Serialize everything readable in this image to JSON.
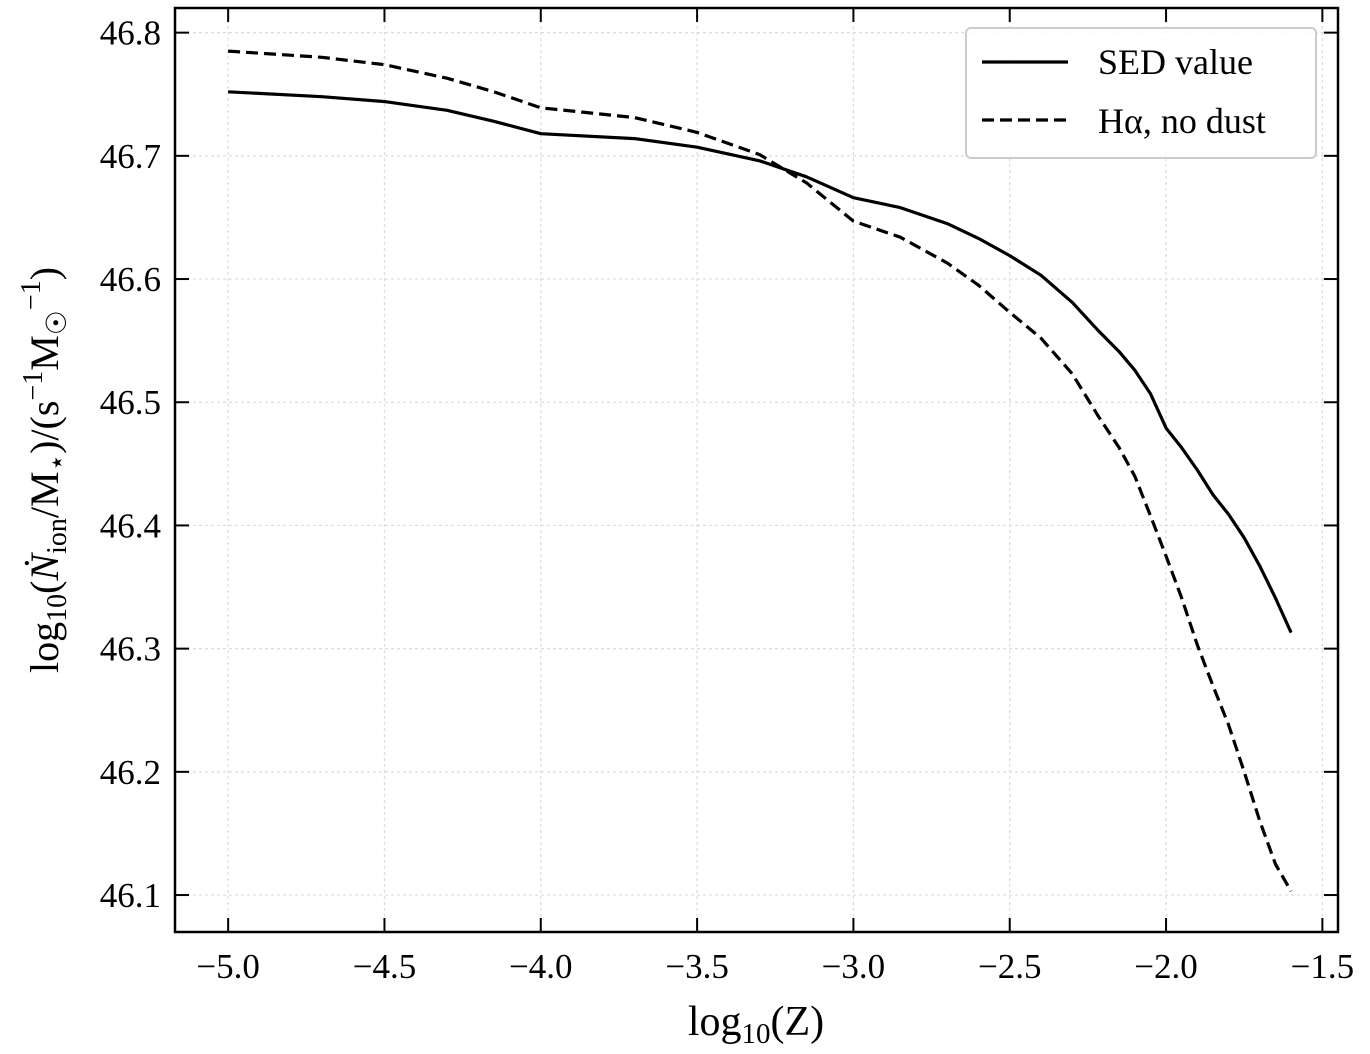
{
  "chart_data": {
    "type": "line",
    "xlabel": "log10(Z)",
    "ylabel": "log10(Ṅion/M⋆)/(s−1M☉−1)",
    "xlim": [
      -5.17,
      -1.45
    ],
    "ylim": [
      46.07,
      46.82
    ],
    "x_ticks": [
      -5.0,
      -4.5,
      -4.0,
      -3.5,
      -3.0,
      -2.5,
      -2.0,
      -1.5
    ],
    "x_tick_labels": [
      "−5.0",
      "−4.5",
      "−4.0",
      "−3.5",
      "−3.0",
      "−2.5",
      "−2.0",
      "−1.5"
    ],
    "y_ticks": [
      46.1,
      46.2,
      46.3,
      46.4,
      46.5,
      46.6,
      46.7,
      46.8
    ],
    "y_tick_labels": [
      "46.1",
      "46.2",
      "46.3",
      "46.4",
      "46.5",
      "46.6",
      "46.7",
      "46.8"
    ],
    "grid": true,
    "legend_position": "top-right",
    "series": [
      {
        "name": "SED value",
        "style": "solid",
        "color": "#000000",
        "x": [
          -5.0,
          -4.7,
          -4.5,
          -4.3,
          -4.15,
          -4.0,
          -3.7,
          -3.5,
          -3.3,
          -3.15,
          -3.0,
          -2.85,
          -2.7,
          -2.6,
          -2.5,
          -2.4,
          -2.3,
          -2.22,
          -2.15,
          -2.1,
          -2.05,
          -2.0,
          -1.95,
          -1.9,
          -1.85,
          -1.8,
          -1.75,
          -1.7,
          -1.65,
          -1.6
        ],
        "values": [
          46.752,
          46.748,
          46.744,
          46.737,
          46.728,
          46.718,
          46.714,
          46.707,
          46.696,
          46.683,
          46.666,
          46.658,
          46.645,
          46.633,
          46.619,
          46.603,
          46.581,
          46.559,
          46.541,
          46.526,
          46.507,
          46.479,
          46.463,
          46.445,
          46.425,
          46.409,
          46.39,
          46.367,
          46.341,
          46.313
        ]
      },
      {
        "name": "Hα, no dust",
        "style": "dashed",
        "color": "#000000",
        "x": [
          -5.0,
          -4.7,
          -4.5,
          -4.3,
          -4.15,
          -4.0,
          -3.7,
          -3.5,
          -3.3,
          -3.15,
          -3.0,
          -2.85,
          -2.7,
          -2.6,
          -2.5,
          -2.4,
          -2.3,
          -2.22,
          -2.15,
          -2.1,
          -2.05,
          -2.0,
          -1.95,
          -1.9,
          -1.85,
          -1.8,
          -1.75,
          -1.7,
          -1.65,
          -1.6
        ],
        "values": [
          46.785,
          46.78,
          46.774,
          46.763,
          46.752,
          46.739,
          46.731,
          46.719,
          46.701,
          46.678,
          46.647,
          46.634,
          46.613,
          46.595,
          46.573,
          46.552,
          46.523,
          46.49,
          46.463,
          46.44,
          46.408,
          46.375,
          46.341,
          46.303,
          46.27,
          46.238,
          46.2,
          46.16,
          46.125,
          46.103
        ]
      }
    ]
  }
}
